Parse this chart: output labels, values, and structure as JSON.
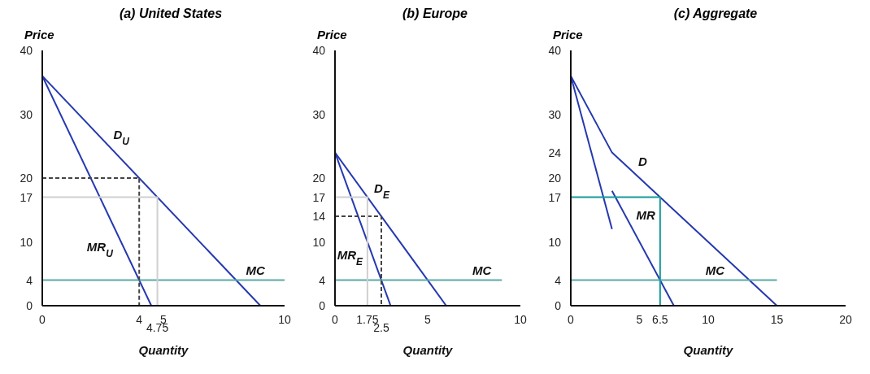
{
  "chart_data": [
    {
      "type": "line",
      "title": "(a) United States",
      "xlabel": "Quantity",
      "ylabel": "Price",
      "xlim": [
        0,
        10
      ],
      "xticks": [
        0,
        4,
        5,
        10
      ],
      "ylim": [
        0,
        40
      ],
      "yticks": [
        0,
        4,
        10,
        17,
        20,
        30,
        40
      ],
      "annotations": [
        {
          "text": "4.75",
          "x": 4.75,
          "y": 0
        }
      ],
      "series": [
        {
          "name": "D$_{U}$",
          "color": "#2438b0",
          "x": [
            0,
            9
          ],
          "values": [
            36,
            0
          ]
        },
        {
          "name": "MR$_{U}$",
          "color": "#2438b0",
          "x": [
            0,
            4.5
          ],
          "values": [
            36,
            0
          ]
        },
        {
          "name": "MC",
          "color": "#5aa9a6",
          "x": [
            0,
            10
          ],
          "values": [
            4,
            4
          ]
        },
        {
          "color": "#444444",
          "line_style": "dashed",
          "x": [
            0,
            4,
            4
          ],
          "values": [
            20,
            20,
            0
          ]
        },
        {
          "color": "#d0d0d0",
          "x": [
            0,
            4.75,
            4.75
          ],
          "values": [
            17,
            17,
            0
          ]
        }
      ]
    },
    {
      "type": "line",
      "title": "(b) Europe",
      "xlabel": "Quantity",
      "ylabel": "Price",
      "xlim": [
        0,
        10
      ],
      "xticks": [
        0,
        1.75,
        5,
        10
      ],
      "ylim": [
        0,
        40
      ],
      "yticks": [
        0,
        4,
        10,
        14,
        17,
        20,
        30,
        40
      ],
      "annotations": [
        {
          "text": "2.5",
          "x": 2.5,
          "y": 0
        }
      ],
      "series": [
        {
          "name": "D$_{E}$",
          "color": "#2438b0",
          "x": [
            0,
            6
          ],
          "values": [
            24,
            0
          ]
        },
        {
          "name": "MR$_{E}$",
          "color": "#2438b0",
          "x": [
            0,
            3
          ],
          "values": [
            24,
            0
          ]
        },
        {
          "name": "MC",
          "color": "#5aa9a6",
          "x": [
            0,
            9
          ],
          "values": [
            4,
            4
          ]
        },
        {
          "color": "#444444",
          "line_style": "dashed",
          "x": [
            0,
            2.5,
            2.5
          ],
          "values": [
            14,
            14,
            0
          ]
        },
        {
          "color": "#d0d0d0",
          "x": [
            0,
            1.75,
            1.75
          ],
          "values": [
            17,
            17,
            0
          ]
        }
      ]
    },
    {
      "type": "line",
      "title": "(c) Aggregate",
      "xlabel": "Quantity",
      "ylabel": "Price",
      "xlim": [
        0,
        20
      ],
      "xticks": [
        0,
        5,
        6.5,
        10,
        15,
        20
      ],
      "ylim": [
        0,
        40
      ],
      "yticks": [
        0,
        4,
        10,
        17,
        20,
        24,
        30,
        40
      ],
      "series": [
        {
          "name": "D",
          "color": "#2438b0",
          "x": [
            0,
            3,
            15
          ],
          "values": [
            36,
            24,
            0
          ]
        },
        {
          "color": "#2438b0",
          "x": [
            0,
            3
          ],
          "values": [
            36,
            12
          ]
        },
        {
          "name": "MR",
          "color": "#2438b0",
          "x": [
            3,
            7.5
          ],
          "values": [
            18,
            0
          ]
        },
        {
          "name": "MC",
          "color": "#5aa9a6",
          "x": [
            0,
            15
          ],
          "values": [
            4,
            4
          ]
        },
        {
          "color": "#179a9a",
          "x": [
            0,
            6.5,
            6.5
          ],
          "values": [
            17,
            17,
            0
          ]
        }
      ]
    }
  ]
}
